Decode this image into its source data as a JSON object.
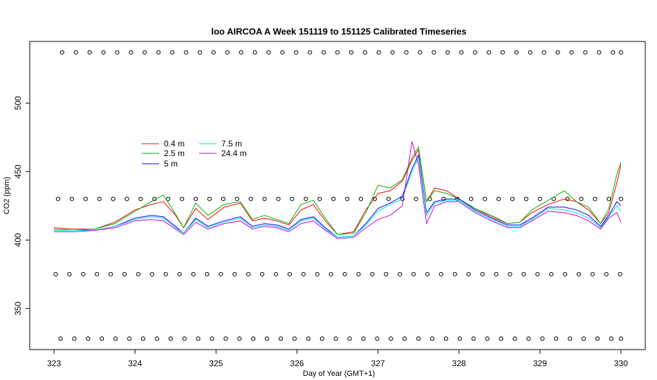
{
  "chart_data": {
    "type": "line",
    "title": "loo AIRCOA A  Week 151119 to 151125  Calibrated Timeseries",
    "xlabel": "Day of Year (GMT+1)",
    "ylabel": "CO2 (ppm)",
    "xlim": [
      322.7,
      330.3
    ],
    "ylim": [
      320,
      545
    ],
    "xticks": [
      "323",
      "324",
      "325",
      "326",
      "327",
      "328",
      "329",
      "330"
    ],
    "yticks": [
      "350",
      "400",
      "450",
      "500"
    ],
    "grid": false,
    "legend": {
      "position": "upper-left",
      "columns": 2
    },
    "series": [
      {
        "name": "0.4 m",
        "color": "#ff0000",
        "x": [
          323,
          323.25,
          323.5,
          323.75,
          324,
          324.2,
          324.35,
          324.5,
          324.6,
          324.75,
          324.9,
          325.1,
          325.3,
          325.45,
          325.6,
          325.75,
          325.9,
          326.05,
          326.2,
          326.35,
          326.5,
          326.7,
          326.85,
          327,
          327.15,
          327.3,
          327.42,
          327.5,
          327.6,
          327.7,
          327.85,
          328,
          328.2,
          328.4,
          328.6,
          328.75,
          328.9,
          329.1,
          329.3,
          329.45,
          329.6,
          329.75,
          329.85,
          329.95,
          330
        ],
        "values": [
          409,
          408,
          408,
          413,
          422,
          426,
          428,
          418,
          409,
          423,
          415,
          424,
          427,
          414,
          416,
          414,
          411,
          422,
          426,
          414,
          404,
          406,
          422,
          434,
          436,
          443,
          458,
          466,
          428,
          438,
          436,
          430,
          423,
          417,
          412,
          413,
          420,
          426,
          430,
          428,
          422,
          412,
          420,
          442,
          455
        ]
      },
      {
        "name": "2.5 m",
        "color": "#00b000",
        "x": [
          323,
          323.25,
          323.5,
          323.75,
          324,
          324.2,
          324.35,
          324.5,
          324.6,
          324.75,
          324.9,
          325.1,
          325.3,
          325.45,
          325.6,
          325.75,
          325.9,
          326.05,
          326.2,
          326.35,
          326.5,
          326.7,
          326.85,
          327,
          327.15,
          327.3,
          327.42,
          327.5,
          327.6,
          327.7,
          327.85,
          328,
          328.2,
          328.4,
          328.6,
          328.75,
          328.9,
          329.1,
          329.3,
          329.45,
          329.6,
          329.75,
          329.85,
          329.95,
          330
        ],
        "values": [
          408,
          407,
          408,
          412,
          421,
          428,
          433,
          419,
          409,
          427,
          418,
          426,
          428,
          415,
          418,
          415,
          412,
          426,
          429,
          416,
          404,
          405,
          420,
          440,
          438,
          444,
          460,
          468,
          428,
          436,
          434,
          430,
          423,
          418,
          412,
          413,
          422,
          429,
          436,
          428,
          424,
          412,
          423,
          448,
          457
        ]
      },
      {
        "name": "5 m",
        "color": "#0000ff",
        "x": [
          323,
          323.25,
          323.5,
          323.75,
          324,
          324.2,
          324.35,
          324.5,
          324.6,
          324.75,
          324.9,
          325.1,
          325.3,
          325.45,
          325.6,
          325.75,
          325.9,
          326.05,
          326.2,
          326.35,
          326.5,
          326.7,
          326.85,
          327,
          327.15,
          327.3,
          327.42,
          327.5,
          327.6,
          327.7,
          327.85,
          328,
          328.2,
          328.4,
          328.6,
          328.75,
          328.9,
          329.1,
          329.3,
          329.45,
          329.6,
          329.75,
          329.85,
          329.95,
          330
        ],
        "values": [
          407,
          407,
          407,
          410,
          416,
          418,
          417,
          410,
          405,
          416,
          410,
          414,
          417,
          410,
          412,
          411,
          408,
          415,
          417,
          409,
          402,
          403,
          412,
          423,
          427,
          432,
          452,
          462,
          420,
          428,
          430,
          430,
          422,
          416,
          411,
          411,
          416,
          424,
          424,
          422,
          418,
          410,
          418,
          428,
          425
        ]
      },
      {
        "name": "7.5 m",
        "color": "#00dddd",
        "x": [
          323,
          323.25,
          323.5,
          323.75,
          324,
          324.2,
          324.35,
          324.5,
          324.6,
          324.75,
          324.9,
          325.1,
          325.3,
          325.45,
          325.6,
          325.75,
          325.9,
          326.05,
          326.2,
          326.35,
          326.5,
          326.7,
          326.85,
          327,
          327.15,
          327.3,
          327.42,
          327.5,
          327.6,
          327.7,
          327.85,
          328,
          328.2,
          328.4,
          328.6,
          328.75,
          328.9,
          329.1,
          329.3,
          329.45,
          329.6,
          329.75,
          329.85,
          329.95,
          330
        ],
        "values": [
          407,
          407,
          407,
          410,
          415,
          417,
          416,
          409,
          405,
          415,
          409,
          413,
          416,
          409,
          411,
          410,
          407,
          414,
          416,
          408,
          402,
          403,
          411,
          421,
          426,
          430,
          450,
          460,
          418,
          427,
          429,
          429,
          421,
          415,
          410,
          410,
          415,
          423,
          422,
          420,
          416,
          409,
          417,
          425,
          421
        ]
      },
      {
        "name": "24.4 m",
        "color": "#cc00cc",
        "x": [
          323,
          323.25,
          323.5,
          323.75,
          324,
          324.2,
          324.35,
          324.5,
          324.6,
          324.75,
          324.9,
          325.1,
          325.3,
          325.45,
          325.6,
          325.75,
          325.9,
          326.05,
          326.2,
          326.35,
          326.5,
          326.7,
          326.85,
          327,
          327.15,
          327.3,
          327.42,
          327.5,
          327.6,
          327.7,
          327.85,
          328,
          328.2,
          328.4,
          328.6,
          328.75,
          328.9,
          329.1,
          329.3,
          329.45,
          329.6,
          329.75,
          329.85,
          329.95,
          330
        ],
        "values": [
          406,
          406,
          407,
          409,
          414,
          415,
          414,
          408,
          404,
          413,
          408,
          412,
          414,
          408,
          410,
          409,
          406,
          412,
          414,
          407,
          401,
          402,
          409,
          415,
          418,
          425,
          472,
          455,
          412,
          425,
          428,
          428,
          420,
          414,
          409,
          409,
          414,
          421,
          420,
          418,
          414,
          408,
          416,
          420,
          413
        ]
      }
    ],
    "status_rows": [
      {
        "level": 537,
        "x": [
          323.1,
          323.27,
          323.44,
          323.61,
          323.78,
          323.95,
          324.12,
          324.29,
          324.46,
          324.63,
          324.8,
          324.97,
          325.14,
          325.31,
          325.48,
          325.65,
          325.82,
          325.99,
          326.16,
          326.33,
          326.5,
          326.67,
          326.84,
          327.01,
          327.18,
          327.35,
          327.52,
          327.69,
          327.86,
          328.03,
          328.2,
          328.37,
          328.54,
          328.71,
          328.88,
          329.05,
          329.22,
          329.39,
          329.56,
          329.73,
          329.9,
          330
        ]
      },
      {
        "level": 430,
        "x": [
          323.05,
          323.22,
          323.39,
          323.56,
          323.73,
          323.9,
          324.07,
          324.24,
          324.41,
          324.58,
          324.75,
          324.92,
          325.09,
          325.26,
          325.43,
          325.6,
          325.77,
          325.94,
          326.11,
          326.28,
          326.45,
          326.62,
          326.79,
          326.96,
          327.13,
          327.3,
          327.47,
          327.64,
          327.81,
          327.98,
          328.15,
          328.32,
          328.49,
          328.66,
          328.83,
          329.0,
          329.17,
          329.34,
          329.51,
          329.68,
          329.85,
          330
        ]
      },
      {
        "level": 375,
        "x": [
          323.02,
          323.19,
          323.36,
          323.53,
          323.7,
          323.87,
          324.04,
          324.21,
          324.38,
          324.55,
          324.72,
          324.89,
          325.06,
          325.23,
          325.4,
          325.57,
          325.74,
          325.91,
          326.08,
          326.25,
          326.42,
          326.59,
          326.76,
          326.93,
          327.1,
          327.27,
          327.44,
          327.61,
          327.78,
          327.95,
          328.12,
          328.29,
          328.46,
          328.63,
          328.8,
          328.97,
          329.14,
          329.31,
          329.48,
          329.65,
          329.82,
          329.99
        ]
      },
      {
        "level": 328,
        "x": [
          323.08,
          323.25,
          323.42,
          323.59,
          323.76,
          323.93,
          324.1,
          324.27,
          324.44,
          324.61,
          324.78,
          324.95,
          325.12,
          325.29,
          325.46,
          325.63,
          325.8,
          325.97,
          326.14,
          326.31,
          326.48,
          326.65,
          326.82,
          326.99,
          327.16,
          327.33,
          327.5,
          327.67,
          327.84,
          328.01,
          328.18,
          328.35,
          328.52,
          328.69,
          328.86,
          329.03,
          329.2,
          329.37,
          329.54,
          329.71,
          329.88,
          330
        ]
      }
    ]
  }
}
